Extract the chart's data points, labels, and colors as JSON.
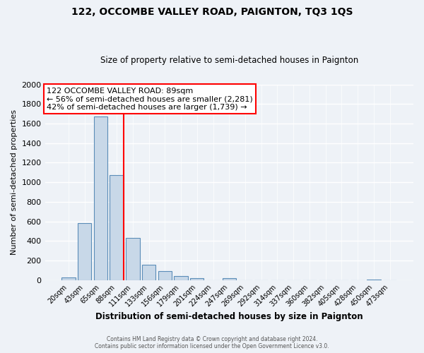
{
  "title": "122, OCCOMBE VALLEY ROAD, PAIGNTON, TQ3 1QS",
  "subtitle": "Size of property relative to semi-detached houses in Paignton",
  "xlabel": "Distribution of semi-detached houses by size in Paignton",
  "ylabel": "Number of semi-detached properties",
  "bin_labels": [
    "20sqm",
    "43sqm",
    "65sqm",
    "88sqm",
    "111sqm",
    "133sqm",
    "156sqm",
    "179sqm",
    "201sqm",
    "224sqm",
    "247sqm",
    "269sqm",
    "292sqm",
    "314sqm",
    "337sqm",
    "360sqm",
    "382sqm",
    "405sqm",
    "428sqm",
    "450sqm",
    "473sqm"
  ],
  "bin_values": [
    30,
    580,
    1670,
    1070,
    430,
    160,
    90,
    40,
    20,
    0,
    20,
    0,
    0,
    0,
    0,
    0,
    0,
    0,
    0,
    5,
    0
  ],
  "bar_color": "#c8d8e8",
  "bar_edge_color": "#5b8db8",
  "property_line_color": "red",
  "property_bin_index": 3,
  "annotation_title": "122 OCCOMBE VALLEY ROAD: 89sqm",
  "annotation_line1": "← 56% of semi-detached houses are smaller (2,281)",
  "annotation_line2": "42% of semi-detached houses are larger (1,739) →",
  "annotation_box_color": "white",
  "annotation_box_edge": "red",
  "ylim": [
    0,
    2000
  ],
  "yticks": [
    0,
    200,
    400,
    600,
    800,
    1000,
    1200,
    1400,
    1600,
    1800,
    2000
  ],
  "footer_line1": "Contains HM Land Registry data © Crown copyright and database right 2024.",
  "footer_line2": "Contains public sector information licensed under the Open Government Licence v3.0.",
  "background_color": "#eef2f7"
}
